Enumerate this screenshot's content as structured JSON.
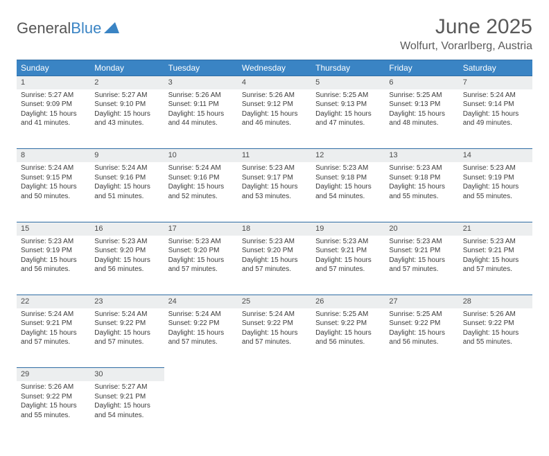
{
  "logo": {
    "word1": "General",
    "word2": "Blue"
  },
  "header": {
    "title": "June 2025",
    "location": "Wolfurt, Vorarlberg, Austria"
  },
  "weekdays": [
    "Sunday",
    "Monday",
    "Tuesday",
    "Wednesday",
    "Thursday",
    "Friday",
    "Saturday"
  ],
  "colors": {
    "header_bg": "#3a84c4",
    "header_text": "#ffffff",
    "border": "#2d6ba3",
    "daynum_bg": "#eceeef",
    "text": "#3a3a3a"
  },
  "days": [
    {
      "n": "1",
      "sr": "5:27 AM",
      "ss": "9:09 PM",
      "dl": "15 hours and 41 minutes."
    },
    {
      "n": "2",
      "sr": "5:27 AM",
      "ss": "9:10 PM",
      "dl": "15 hours and 43 minutes."
    },
    {
      "n": "3",
      "sr": "5:26 AM",
      "ss": "9:11 PM",
      "dl": "15 hours and 44 minutes."
    },
    {
      "n": "4",
      "sr": "5:26 AM",
      "ss": "9:12 PM",
      "dl": "15 hours and 46 minutes."
    },
    {
      "n": "5",
      "sr": "5:25 AM",
      "ss": "9:13 PM",
      "dl": "15 hours and 47 minutes."
    },
    {
      "n": "6",
      "sr": "5:25 AM",
      "ss": "9:13 PM",
      "dl": "15 hours and 48 minutes."
    },
    {
      "n": "7",
      "sr": "5:24 AM",
      "ss": "9:14 PM",
      "dl": "15 hours and 49 minutes."
    },
    {
      "n": "8",
      "sr": "5:24 AM",
      "ss": "9:15 PM",
      "dl": "15 hours and 50 minutes."
    },
    {
      "n": "9",
      "sr": "5:24 AM",
      "ss": "9:16 PM",
      "dl": "15 hours and 51 minutes."
    },
    {
      "n": "10",
      "sr": "5:24 AM",
      "ss": "9:16 PM",
      "dl": "15 hours and 52 minutes."
    },
    {
      "n": "11",
      "sr": "5:23 AM",
      "ss": "9:17 PM",
      "dl": "15 hours and 53 minutes."
    },
    {
      "n": "12",
      "sr": "5:23 AM",
      "ss": "9:18 PM",
      "dl": "15 hours and 54 minutes."
    },
    {
      "n": "13",
      "sr": "5:23 AM",
      "ss": "9:18 PM",
      "dl": "15 hours and 55 minutes."
    },
    {
      "n": "14",
      "sr": "5:23 AM",
      "ss": "9:19 PM",
      "dl": "15 hours and 55 minutes."
    },
    {
      "n": "15",
      "sr": "5:23 AM",
      "ss": "9:19 PM",
      "dl": "15 hours and 56 minutes."
    },
    {
      "n": "16",
      "sr": "5:23 AM",
      "ss": "9:20 PM",
      "dl": "15 hours and 56 minutes."
    },
    {
      "n": "17",
      "sr": "5:23 AM",
      "ss": "9:20 PM",
      "dl": "15 hours and 57 minutes."
    },
    {
      "n": "18",
      "sr": "5:23 AM",
      "ss": "9:20 PM",
      "dl": "15 hours and 57 minutes."
    },
    {
      "n": "19",
      "sr": "5:23 AM",
      "ss": "9:21 PM",
      "dl": "15 hours and 57 minutes."
    },
    {
      "n": "20",
      "sr": "5:23 AM",
      "ss": "9:21 PM",
      "dl": "15 hours and 57 minutes."
    },
    {
      "n": "21",
      "sr": "5:23 AM",
      "ss": "9:21 PM",
      "dl": "15 hours and 57 minutes."
    },
    {
      "n": "22",
      "sr": "5:24 AM",
      "ss": "9:21 PM",
      "dl": "15 hours and 57 minutes."
    },
    {
      "n": "23",
      "sr": "5:24 AM",
      "ss": "9:22 PM",
      "dl": "15 hours and 57 minutes."
    },
    {
      "n": "24",
      "sr": "5:24 AM",
      "ss": "9:22 PM",
      "dl": "15 hours and 57 minutes."
    },
    {
      "n": "25",
      "sr": "5:24 AM",
      "ss": "9:22 PM",
      "dl": "15 hours and 57 minutes."
    },
    {
      "n": "26",
      "sr": "5:25 AM",
      "ss": "9:22 PM",
      "dl": "15 hours and 56 minutes."
    },
    {
      "n": "27",
      "sr": "5:25 AM",
      "ss": "9:22 PM",
      "dl": "15 hours and 56 minutes."
    },
    {
      "n": "28",
      "sr": "5:26 AM",
      "ss": "9:22 PM",
      "dl": "15 hours and 55 minutes."
    },
    {
      "n": "29",
      "sr": "5:26 AM",
      "ss": "9:22 PM",
      "dl": "15 hours and 55 minutes."
    },
    {
      "n": "30",
      "sr": "5:27 AM",
      "ss": "9:21 PM",
      "dl": "15 hours and 54 minutes."
    }
  ],
  "labels": {
    "sunrise": "Sunrise: ",
    "sunset": "Sunset: ",
    "daylight": "Daylight: "
  },
  "layout": {
    "start_weekday": 0,
    "days_in_month": 30,
    "cols": 7
  }
}
